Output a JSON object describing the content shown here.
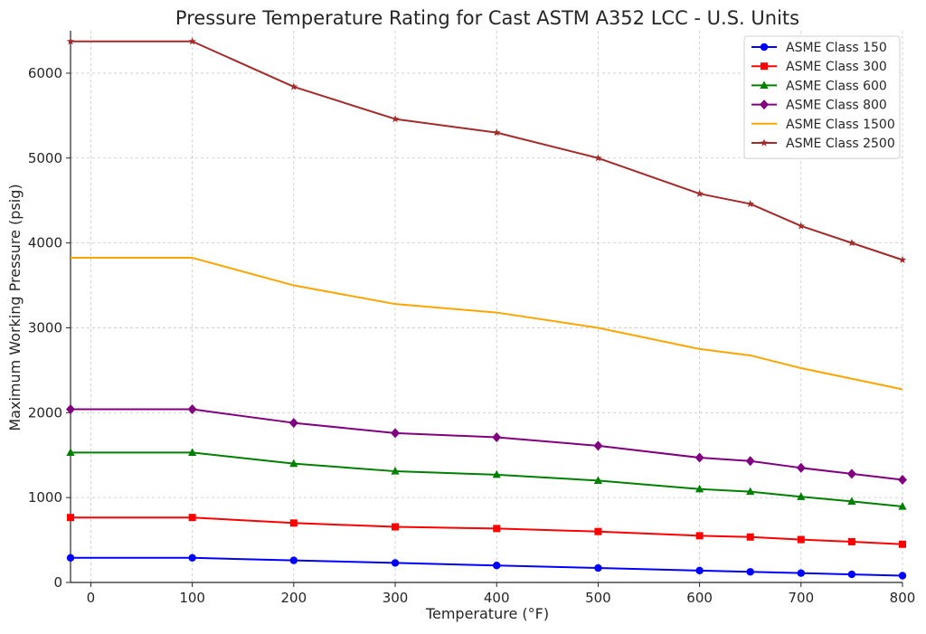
{
  "chart_data": {
    "type": "line",
    "title": "Pressure Temperature Rating for Cast ASTM A352 LCC - U.S. Units",
    "xlabel": "Temperature (°F)",
    "ylabel": "Maximum Working Pressure (psig)",
    "xlim": [
      -20,
      800
    ],
    "ylim": [
      0,
      6500
    ],
    "xticks": [
      0,
      100,
      200,
      300,
      400,
      500,
      600,
      700,
      800
    ],
    "yticks": [
      0,
      1000,
      2000,
      3000,
      4000,
      5000,
      6000
    ],
    "grid": true,
    "legend_position": "top-right",
    "x": [
      -20,
      100,
      200,
      300,
      400,
      500,
      600,
      650,
      700,
      750,
      800
    ],
    "series": [
      {
        "name": "ASME Class 150",
        "color": "#0000ff",
        "marker": "circle",
        "values": [
          290,
          290,
          260,
          230,
          200,
          170,
          140,
          125,
          110,
          95,
          80
        ]
      },
      {
        "name": "ASME Class 300",
        "color": "#ff0000",
        "marker": "square",
        "values": [
          765,
          765,
          700,
          655,
          635,
          600,
          550,
          535,
          505,
          480,
          450
        ]
      },
      {
        "name": "ASME Class 600",
        "color": "#008000",
        "marker": "triangle",
        "values": [
          1530,
          1530,
          1400,
          1310,
          1270,
          1200,
          1100,
          1070,
          1010,
          955,
          895
        ]
      },
      {
        "name": "ASME Class 800",
        "color": "#800080",
        "marker": "diamond",
        "values": [
          2040,
          2040,
          1880,
          1760,
          1710,
          1610,
          1470,
          1430,
          1350,
          1280,
          1210
        ]
      },
      {
        "name": "ASME Class 1500",
        "color": "#ffa500",
        "marker": "none",
        "values": [
          3825,
          3825,
          3500,
          3280,
          3180,
          3000,
          2750,
          2675,
          2525,
          2400,
          2275
        ]
      },
      {
        "name": "ASME Class 2500",
        "color": "#a52a2a",
        "marker": "star",
        "values": [
          6375,
          6375,
          5840,
          5460,
          5300,
          5000,
          4580,
          4460,
          4200,
          4000,
          3800
        ]
      }
    ]
  }
}
